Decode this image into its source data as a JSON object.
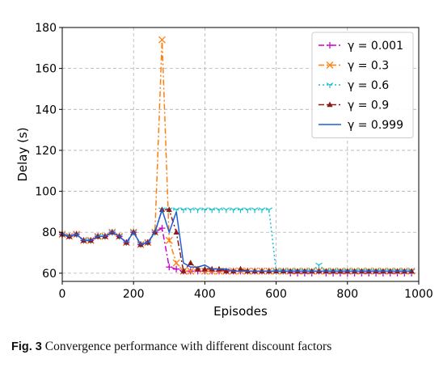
{
  "chart_data": {
    "type": "line",
    "xlabel": "Episodes",
    "ylabel": "Delay (s)",
    "xlim": [
      0,
      1000
    ],
    "ylim": [
      56,
      180
    ],
    "xticks": [
      0,
      200,
      400,
      600,
      800,
      1000
    ],
    "yticks": [
      60,
      80,
      100,
      120,
      140,
      160,
      180
    ],
    "grid": true,
    "legend_position": "top-right",
    "series": [
      {
        "name": "γ = 0.001",
        "color": "#cc00cc",
        "dash": "dashdot",
        "marker": "plus",
        "x": [
          0,
          20,
          40,
          60,
          80,
          100,
          120,
          140,
          160,
          180,
          200,
          220,
          240,
          260,
          280,
          300,
          320,
          340,
          360,
          380,
          400,
          420,
          440,
          460,
          480,
          500,
          520,
          540,
          560,
          580,
          600,
          620,
          640,
          660,
          680,
          700,
          720,
          740,
          760,
          780,
          800,
          820,
          840,
          860,
          880,
          900,
          920,
          940,
          960,
          980
        ],
        "y": [
          79,
          78,
          79,
          76,
          76,
          78,
          78,
          80,
          78,
          75,
          80,
          74,
          75,
          80,
          82,
          63,
          62,
          61,
          61,
          61,
          61,
          61,
          61,
          61,
          61,
          61,
          61,
          61,
          61,
          61,
          61,
          61,
          60,
          60,
          60,
          60,
          61,
          60,
          60,
          60,
          60,
          60,
          60,
          60,
          60,
          60,
          60,
          60,
          60,
          60
        ]
      },
      {
        "name": "γ = 0.3",
        "color": "#ff7f0e",
        "dash": "dashdot",
        "marker": "x",
        "x": [
          0,
          20,
          40,
          60,
          80,
          100,
          120,
          140,
          160,
          180,
          200,
          220,
          240,
          260,
          280,
          300,
          320,
          340,
          360,
          380,
          400,
          420,
          440,
          460,
          480,
          500,
          520,
          540,
          560,
          580,
          600,
          620,
          640,
          660,
          680,
          700,
          720,
          740,
          760,
          780,
          800,
          820,
          840,
          860,
          880,
          900,
          920,
          940,
          960,
          980
        ],
        "y": [
          79,
          78,
          79,
          76,
          76,
          78,
          78,
          80,
          78,
          75,
          80,
          74,
          75,
          80,
          174,
          76,
          65,
          61,
          61,
          62,
          61,
          61,
          61,
          61,
          61,
          61,
          61,
          61,
          61,
          61,
          61,
          61,
          61,
          61,
          61,
          61,
          61,
          61,
          61,
          61,
          61,
          61,
          61,
          61,
          61,
          61,
          61,
          61,
          61,
          61
        ]
      },
      {
        "name": "γ = 0.6",
        "color": "#17becf",
        "dash": "dotted",
        "marker": "tri_down",
        "x": [
          0,
          20,
          40,
          60,
          80,
          100,
          120,
          140,
          160,
          180,
          200,
          220,
          240,
          260,
          280,
          300,
          320,
          340,
          360,
          380,
          400,
          420,
          440,
          460,
          480,
          500,
          520,
          540,
          560,
          580,
          600,
          620,
          640,
          660,
          680,
          700,
          720,
          740,
          760,
          780,
          800,
          820,
          840,
          860,
          880,
          900,
          920,
          940,
          960,
          980
        ],
        "y": [
          79,
          78,
          79,
          76,
          76,
          78,
          78,
          80,
          78,
          75,
          80,
          74,
          75,
          80,
          91,
          91,
          91,
          91,
          91,
          91,
          91,
          91,
          91,
          91,
          91,
          91,
          91,
          91,
          91,
          91,
          61,
          61,
          61,
          61,
          61,
          61,
          64,
          61,
          61,
          61,
          61,
          61,
          61,
          61,
          61,
          61,
          61,
          61,
          61,
          61
        ]
      },
      {
        "name": "γ = 0.9",
        "color": "#8b1a1a",
        "dash": "dashdot",
        "marker": "triangle",
        "x": [
          0,
          20,
          40,
          60,
          80,
          100,
          120,
          140,
          160,
          180,
          200,
          220,
          240,
          260,
          280,
          300,
          320,
          340,
          360,
          380,
          400,
          420,
          440,
          460,
          480,
          500,
          520,
          540,
          560,
          580,
          600,
          620,
          640,
          660,
          680,
          700,
          720,
          740,
          760,
          780,
          800,
          820,
          840,
          860,
          880,
          900,
          920,
          940,
          960,
          980
        ],
        "y": [
          79,
          78,
          79,
          76,
          76,
          78,
          78,
          80,
          78,
          75,
          80,
          74,
          75,
          80,
          91,
          91,
          80,
          61,
          65,
          62,
          62,
          62,
          62,
          61,
          61,
          62,
          61,
          61,
          61,
          61,
          61,
          61,
          61,
          61,
          61,
          61,
          61,
          61,
          61,
          61,
          61,
          61,
          61,
          61,
          61,
          61,
          61,
          61,
          61,
          61
        ]
      },
      {
        "name": "γ = 0.999",
        "color": "#1f5fd6",
        "dash": "solid",
        "marker": "none",
        "x": [
          0,
          20,
          40,
          60,
          80,
          100,
          120,
          140,
          160,
          180,
          200,
          220,
          240,
          260,
          280,
          300,
          320,
          340,
          360,
          380,
          400,
          420,
          440,
          460,
          480,
          500,
          520,
          540,
          560,
          580,
          600,
          620,
          640,
          660,
          680,
          700,
          720,
          740,
          760,
          780,
          800,
          820,
          840,
          860,
          880,
          900,
          920,
          940,
          960,
          980
        ],
        "y": [
          79,
          78,
          79,
          76,
          76,
          78,
          78,
          80,
          78,
          75,
          80,
          74,
          75,
          80,
          91,
          80,
          90,
          65,
          63,
          63,
          64,
          62,
          62,
          62,
          61,
          61,
          61,
          61,
          61,
          61,
          61,
          61,
          61,
          61,
          61,
          61,
          61,
          61,
          61,
          61,
          61,
          61,
          61,
          61,
          61,
          61,
          61,
          61,
          61,
          61
        ]
      }
    ]
  },
  "caption": {
    "label": "Fig. 3",
    "text": "Convergence performance with different discount factors"
  }
}
